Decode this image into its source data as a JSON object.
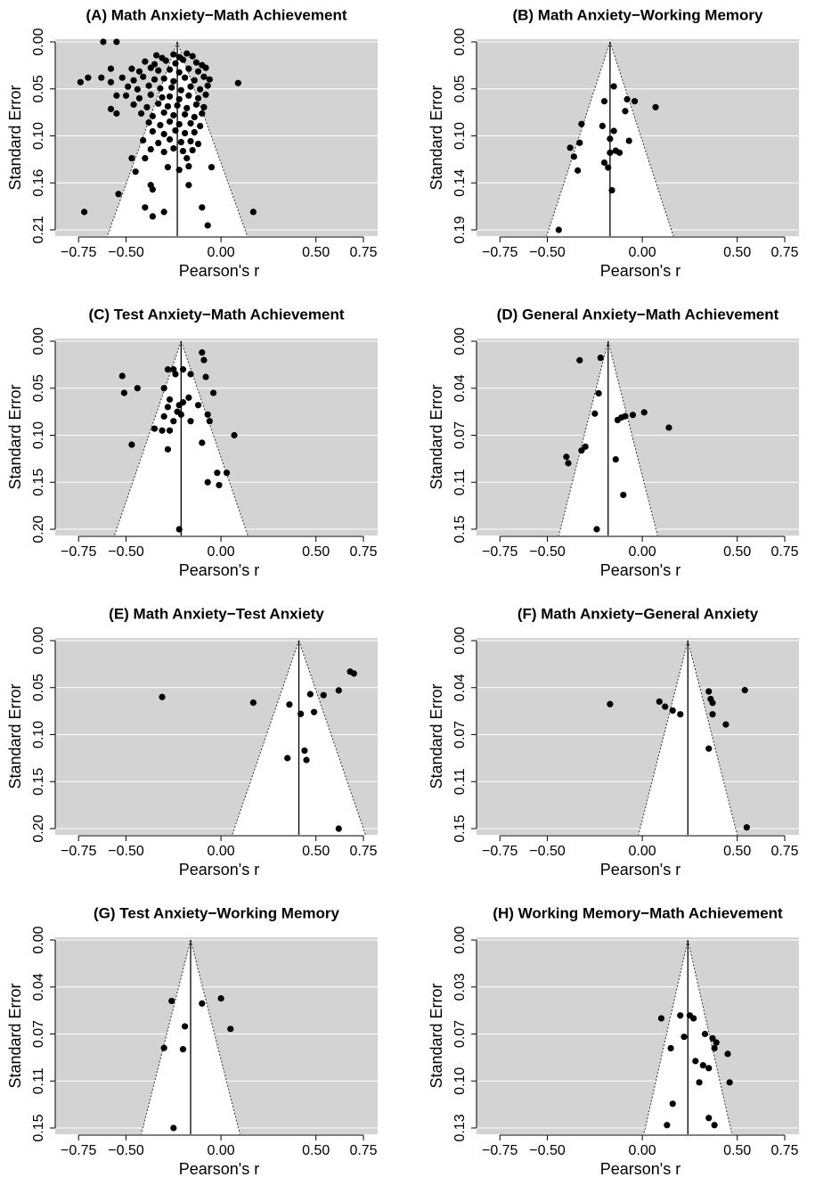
{
  "chart_data": [
    {
      "type": "funnel",
      "title": "(A) Math Anxiety−Math Achievement",
      "xlabel": "Pearson's r",
      "ylabel": "Standard Error",
      "x": [
        -0.62,
        -0.55,
        -0.74,
        -0.7,
        -0.63,
        -0.58,
        -0.58,
        -0.55,
        -0.55,
        -0.58,
        0.09,
        -0.72,
        0.17,
        -0.54,
        -0.47,
        -0.4,
        -0.45,
        -0.37,
        -0.36,
        -0.4,
        -0.36,
        -0.3,
        -0.1,
        -0.07,
        -0.17,
        -0.18,
        -0.05,
        -0.34,
        -0.31,
        -0.25,
        -0.22,
        -0.18,
        -0.15,
        -0.4,
        -0.35,
        -0.29,
        -0.24,
        -0.2,
        -0.13,
        -0.1,
        -0.47,
        -0.43,
        -0.37,
        -0.33,
        -0.27,
        -0.22,
        -0.17,
        -0.12,
        -0.08,
        -0.52,
        -0.46,
        -0.41,
        -0.35,
        -0.3,
        -0.25,
        -0.19,
        -0.14,
        -0.09,
        -0.06,
        -0.49,
        -0.44,
        -0.38,
        -0.32,
        -0.26,
        -0.21,
        -0.16,
        -0.11,
        -0.07,
        -0.5,
        -0.43,
        -0.37,
        -0.31,
        -0.27,
        -0.22,
        -0.17,
        -0.12,
        -0.08,
        -0.46,
        -0.39,
        -0.33,
        -0.28,
        -0.23,
        -0.18,
        -0.13,
        -0.09,
        -0.42,
        -0.36,
        -0.3,
        -0.25,
        -0.19,
        -0.14,
        -0.1,
        -0.38,
        -0.32,
        -0.27,
        -0.22,
        -0.16,
        -0.11,
        -0.36,
        -0.3,
        -0.24,
        -0.19,
        -0.14,
        -0.41,
        -0.33,
        -0.27,
        -0.21,
        -0.16,
        -0.12,
        -0.37,
        -0.3,
        -0.25,
        -0.2,
        -0.15,
        -0.28,
        -0.22,
        -0.17
      ],
      "values": [
        0.0,
        0.0,
        0.045,
        0.04,
        0.04,
        0.03,
        0.045,
        0.06,
        0.08,
        0.075,
        0.046,
        0.19,
        0.19,
        0.17,
        0.13,
        0.13,
        0.145,
        0.16,
        0.165,
        0.185,
        0.195,
        0.19,
        0.185,
        0.205,
        0.16,
        0.13,
        0.14,
        0.015,
        0.018,
        0.014,
        0.017,
        0.013,
        0.016,
        0.022,
        0.025,
        0.021,
        0.024,
        0.02,
        0.023,
        0.026,
        0.03,
        0.033,
        0.029,
        0.032,
        0.031,
        0.034,
        0.03,
        0.033,
        0.029,
        0.04,
        0.043,
        0.039,
        0.042,
        0.041,
        0.044,
        0.04,
        0.043,
        0.039,
        0.042,
        0.05,
        0.053,
        0.049,
        0.052,
        0.051,
        0.054,
        0.05,
        0.053,
        0.049,
        0.06,
        0.063,
        0.059,
        0.062,
        0.061,
        0.064,
        0.06,
        0.063,
        0.059,
        0.07,
        0.073,
        0.069,
        0.072,
        0.071,
        0.074,
        0.07,
        0.073,
        0.08,
        0.083,
        0.079,
        0.082,
        0.081,
        0.084,
        0.08,
        0.09,
        0.093,
        0.089,
        0.092,
        0.091,
        0.094,
        0.1,
        0.103,
        0.099,
        0.102,
        0.101,
        0.11,
        0.113,
        0.109,
        0.112,
        0.111,
        0.114,
        0.12,
        0.123,
        0.119,
        0.122,
        0.121,
        0.14,
        0.143,
        0.139
      ],
      "mean": -0.23,
      "xlim": [
        -0.873,
        0.825
      ],
      "ylim": [
        -0.003,
        0.217
      ],
      "y_reversed": true,
      "xticks": [
        {
          "value": -0.75,
          "label": "−0.75"
        },
        {
          "value": -0.5,
          "label": "−0.50"
        },
        {
          "value": 0,
          "label": "0.00"
        },
        {
          "value": 0.5,
          "label": "0.50"
        },
        {
          "value": 0.75,
          "label": "0.75"
        }
      ],
      "yticks": [
        {
          "value": 0,
          "label": "0.00"
        },
        {
          "value": 0.0525,
          "label": "0.05"
        },
        {
          "value": 0.105,
          "label": "0.10"
        },
        {
          "value": 0.1575,
          "label": "0.16"
        },
        {
          "value": 0.21,
          "label": "0.21"
        }
      ],
      "grid": true,
      "background": "#d3d3d3",
      "color": "#000000"
    },
    {
      "type": "funnel",
      "title": "(B) Math Anxiety−Working Memory",
      "xlabel": "Pearson's r",
      "ylabel": "Standard Error",
      "x": [
        -0.15,
        -0.08,
        -0.04,
        0.07,
        -0.09,
        -0.2,
        -0.21,
        -0.32,
        -0.15,
        -0.17,
        -0.07,
        -0.33,
        -0.38,
        -0.14,
        -0.12,
        -0.17,
        -0.36,
        -0.2,
        -0.18,
        -0.34,
        -0.16,
        -0.44
      ],
      "values": [
        0.045,
        0.058,
        0.06,
        0.066,
        0.07,
        0.06,
        0.085,
        0.083,
        0.09,
        0.098,
        0.1,
        0.102,
        0.107,
        0.11,
        0.112,
        0.112,
        0.116,
        0.122,
        0.127,
        0.13,
        0.15,
        0.19
      ],
      "mean": -0.17,
      "xlim": [
        -0.873,
        0.825
      ],
      "ylim": [
        -0.0027,
        0.1963
      ],
      "y_reversed": true,
      "xticks": [
        {
          "value": -0.75,
          "label": "−0.75"
        },
        {
          "value": -0.5,
          "label": "−0.50"
        },
        {
          "value": 0,
          "label": "0.00"
        },
        {
          "value": 0.5,
          "label": "0.50"
        },
        {
          "value": 0.75,
          "label": "0.75"
        }
      ],
      "yticks": [
        {
          "value": 0,
          "label": "0.00"
        },
        {
          "value": 0.0475,
          "label": "0.05"
        },
        {
          "value": 0.095,
          "label": "0.10"
        },
        {
          "value": 0.1425,
          "label": "0.14"
        },
        {
          "value": 0.19,
          "label": "0.19"
        }
      ],
      "grid": true,
      "background": "#d3d3d3",
      "color": "#000000"
    },
    {
      "type": "funnel",
      "title": "(C) Test Anxiety−Math Achievement",
      "xlabel": "Pearson's r",
      "ylabel": "Standard Error",
      "x": [
        -0.1,
        -0.09,
        -0.25,
        -0.28,
        -0.24,
        -0.2,
        -0.16,
        -0.52,
        -0.08,
        -0.44,
        -0.3,
        -0.51,
        -0.04,
        -0.27,
        -0.22,
        -0.2,
        -0.17,
        -0.28,
        -0.12,
        -0.23,
        -0.21,
        -0.07,
        -0.06,
        -0.16,
        -0.3,
        -0.25,
        -0.35,
        -0.31,
        -0.27,
        0.07,
        -0.47,
        -0.1,
        -0.28,
        -0.02,
        0.03,
        -0.07,
        -0.01,
        -0.22
      ],
      "values": [
        0.012,
        0.02,
        0.03,
        0.03,
        0.035,
        0.03,
        0.035,
        0.037,
        0.038,
        0.05,
        0.05,
        0.055,
        0.055,
        0.062,
        0.068,
        0.065,
        0.06,
        0.07,
        0.068,
        0.075,
        0.078,
        0.078,
        0.085,
        0.085,
        0.08,
        0.085,
        0.093,
        0.095,
        0.095,
        0.1,
        0.11,
        0.108,
        0.115,
        0.14,
        0.14,
        0.15,
        0.153,
        0.2
      ],
      "mean": -0.21,
      "xlim": [
        -0.873,
        0.825
      ],
      "ylim": [
        -0.0028,
        0.2066
      ],
      "y_reversed": true,
      "xticks": [
        {
          "value": -0.75,
          "label": "−0.75"
        },
        {
          "value": -0.5,
          "label": "−0.50"
        },
        {
          "value": 0,
          "label": "0.00"
        },
        {
          "value": 0.5,
          "label": "0.50"
        },
        {
          "value": 0.75,
          "label": "0.75"
        }
      ],
      "yticks": [
        {
          "value": 0,
          "label": "0.00"
        },
        {
          "value": 0.05,
          "label": "0.05"
        },
        {
          "value": 0.1,
          "label": "0.10"
        },
        {
          "value": 0.15,
          "label": "0.15"
        },
        {
          "value": 0.2,
          "label": "0.20"
        }
      ],
      "grid": true,
      "background": "#d3d3d3",
      "color": "#000000"
    },
    {
      "type": "funnel",
      "title": "(D) General Anxiety−Math Achievement",
      "xlabel": "Pearson's r",
      "ylabel": "Standard Error",
      "x": [
        -0.33,
        -0.22,
        -0.23,
        -0.25,
        -0.11,
        -0.13,
        -0.09,
        -0.05,
        0.01,
        0.14,
        -0.3,
        -0.32,
        -0.4,
        -0.39,
        -0.14,
        -0.1,
        -0.24
      ],
      "values": [
        0.015,
        0.013,
        0.041,
        0.057,
        0.06,
        0.062,
        0.059,
        0.058,
        0.056,
        0.068,
        0.083,
        0.086,
        0.091,
        0.096,
        0.093,
        0.121,
        0.148
      ],
      "mean": -0.18,
      "xlim": [
        -0.873,
        0.825
      ],
      "ylim": [
        -0.0021,
        0.1529
      ],
      "y_reversed": true,
      "xticks": [
        {
          "value": -0.75,
          "label": "−0.75"
        },
        {
          "value": -0.5,
          "label": "−0.50"
        },
        {
          "value": 0,
          "label": "0.00"
        },
        {
          "value": 0.5,
          "label": "0.50"
        },
        {
          "value": 0.75,
          "label": "0.75"
        }
      ],
      "yticks": [
        {
          "value": 0,
          "label": "0.00"
        },
        {
          "value": 0.037,
          "label": "0.04"
        },
        {
          "value": 0.074,
          "label": "0.07"
        },
        {
          "value": 0.111,
          "label": "0.11"
        },
        {
          "value": 0.148,
          "label": "0.15"
        }
      ],
      "grid": true,
      "background": "#d3d3d3",
      "color": "#000000"
    },
    {
      "type": "funnel",
      "title": "(E) Math Anxiety−Test Anxiety",
      "xlabel": "Pearson's r",
      "ylabel": "Standard Error",
      "x": [
        -0.31,
        0.17,
        0.36,
        0.47,
        0.54,
        0.62,
        0.68,
        0.7,
        0.42,
        0.49,
        0.35,
        0.44,
        0.45,
        0.62
      ],
      "values": [
        0.06,
        0.066,
        0.068,
        0.057,
        0.058,
        0.053,
        0.033,
        0.035,
        0.078,
        0.076,
        0.125,
        0.117,
        0.127,
        0.2
      ],
      "mean": 0.41,
      "xlim": [
        -0.873,
        0.825
      ],
      "ylim": [
        -0.0028,
        0.2066
      ],
      "y_reversed": true,
      "xticks": [
        {
          "value": -0.75,
          "label": "−0.75"
        },
        {
          "value": -0.5,
          "label": "−0.50"
        },
        {
          "value": 0,
          "label": "0.00"
        },
        {
          "value": 0.5,
          "label": "0.50"
        },
        {
          "value": 0.75,
          "label": "0.75"
        }
      ],
      "yticks": [
        {
          "value": 0,
          "label": "0.00"
        },
        {
          "value": 0.05,
          "label": "0.05"
        },
        {
          "value": 0.1,
          "label": "0.10"
        },
        {
          "value": 0.15,
          "label": "0.15"
        },
        {
          "value": 0.2,
          "label": "0.20"
        }
      ],
      "grid": true,
      "background": "#d3d3d3",
      "color": "#000000"
    },
    {
      "type": "funnel",
      "title": "(F) Math Anxiety−General Anxiety",
      "xlabel": "Pearson's r",
      "ylabel": "Standard Error",
      "x": [
        -0.17,
        0.09,
        0.12,
        0.16,
        0.2,
        0.35,
        0.36,
        0.37,
        0.54,
        0.37,
        0.44,
        0.35,
        0.55
      ],
      "values": [
        0.05,
        0.048,
        0.052,
        0.055,
        0.058,
        0.04,
        0.046,
        0.049,
        0.039,
        0.058,
        0.066,
        0.085,
        0.147
      ],
      "mean": 0.24,
      "xlim": [
        -0.873,
        0.825
      ],
      "ylim": [
        -0.0021,
        0.1529
      ],
      "y_reversed": true,
      "xticks": [
        {
          "value": -0.75,
          "label": "−0.75"
        },
        {
          "value": -0.5,
          "label": "−0.50"
        },
        {
          "value": 0,
          "label": "0.00"
        },
        {
          "value": 0.5,
          "label": "0.50"
        },
        {
          "value": 0.75,
          "label": "0.75"
        }
      ],
      "yticks": [
        {
          "value": 0,
          "label": "0.00"
        },
        {
          "value": 0.037,
          "label": "0.04"
        },
        {
          "value": 0.074,
          "label": "0.07"
        },
        {
          "value": 0.111,
          "label": "0.11"
        },
        {
          "value": 0.148,
          "label": "0.15"
        }
      ],
      "grid": true,
      "background": "#d3d3d3",
      "color": "#000000"
    },
    {
      "type": "funnel",
      "title": "(G) Test Anxiety−Working Memory",
      "xlabel": "Pearson's r",
      "ylabel": "Standard Error",
      "x": [
        -0.26,
        -0.1,
        0.0,
        -0.19,
        0.05,
        -0.3,
        -0.2,
        -0.25
      ],
      "values": [
        0.048,
        0.05,
        0.046,
        0.068,
        0.07,
        0.085,
        0.086,
        0.148
      ],
      "mean": -0.16,
      "xlim": [
        -0.873,
        0.825
      ],
      "ylim": [
        -0.0021,
        0.1529
      ],
      "y_reversed": true,
      "xticks": [
        {
          "value": -0.75,
          "label": "−0.75"
        },
        {
          "value": -0.5,
          "label": "−0.50"
        },
        {
          "value": 0,
          "label": "0.00"
        },
        {
          "value": 0.5,
          "label": "0.50"
        },
        {
          "value": 0.75,
          "label": "0.75"
        }
      ],
      "yticks": [
        {
          "value": 0,
          "label": "0.00"
        },
        {
          "value": 0.037,
          "label": "0.04"
        },
        {
          "value": 0.074,
          "label": "0.07"
        },
        {
          "value": 0.111,
          "label": "0.11"
        },
        {
          "value": 0.148,
          "label": "0.15"
        }
      ],
      "grid": true,
      "background": "#d3d3d3",
      "color": "#000000"
    },
    {
      "type": "funnel",
      "title": "(H) Working Memory−Math Achievement",
      "xlabel": "Pearson's r",
      "ylabel": "Standard Error",
      "x": [
        0.1,
        0.2,
        0.25,
        0.27,
        0.15,
        0.22,
        0.33,
        0.37,
        0.39,
        0.38,
        0.45,
        0.28,
        0.32,
        0.35,
        0.3,
        0.46,
        0.16,
        0.35,
        0.13,
        0.38
      ],
      "values": [
        0.055,
        0.053,
        0.053,
        0.055,
        0.076,
        0.068,
        0.066,
        0.069,
        0.072,
        0.076,
        0.08,
        0.085,
        0.088,
        0.09,
        0.1,
        0.1,
        0.115,
        0.125,
        0.13,
        0.13
      ],
      "mean": 0.24,
      "xlim": [
        -0.873,
        0.825
      ],
      "ylim": [
        -0.0019,
        0.1364
      ],
      "y_reversed": true,
      "xticks": [
        {
          "value": -0.75,
          "label": "−0.75"
        },
        {
          "value": -0.5,
          "label": "−0.50"
        },
        {
          "value": 0,
          "label": "0.00"
        },
        {
          "value": 0.5,
          "label": "0.50"
        },
        {
          "value": 0.75,
          "label": "0.75"
        }
      ],
      "yticks": [
        {
          "value": 0,
          "label": "0.00"
        },
        {
          "value": 0.033,
          "label": "0.03"
        },
        {
          "value": 0.066,
          "label": "0.07"
        },
        {
          "value": 0.099,
          "label": "0.10"
        },
        {
          "value": 0.132,
          "label": "0.13"
        }
      ],
      "grid": true,
      "background": "#d3d3d3",
      "color": "#000000"
    }
  ]
}
